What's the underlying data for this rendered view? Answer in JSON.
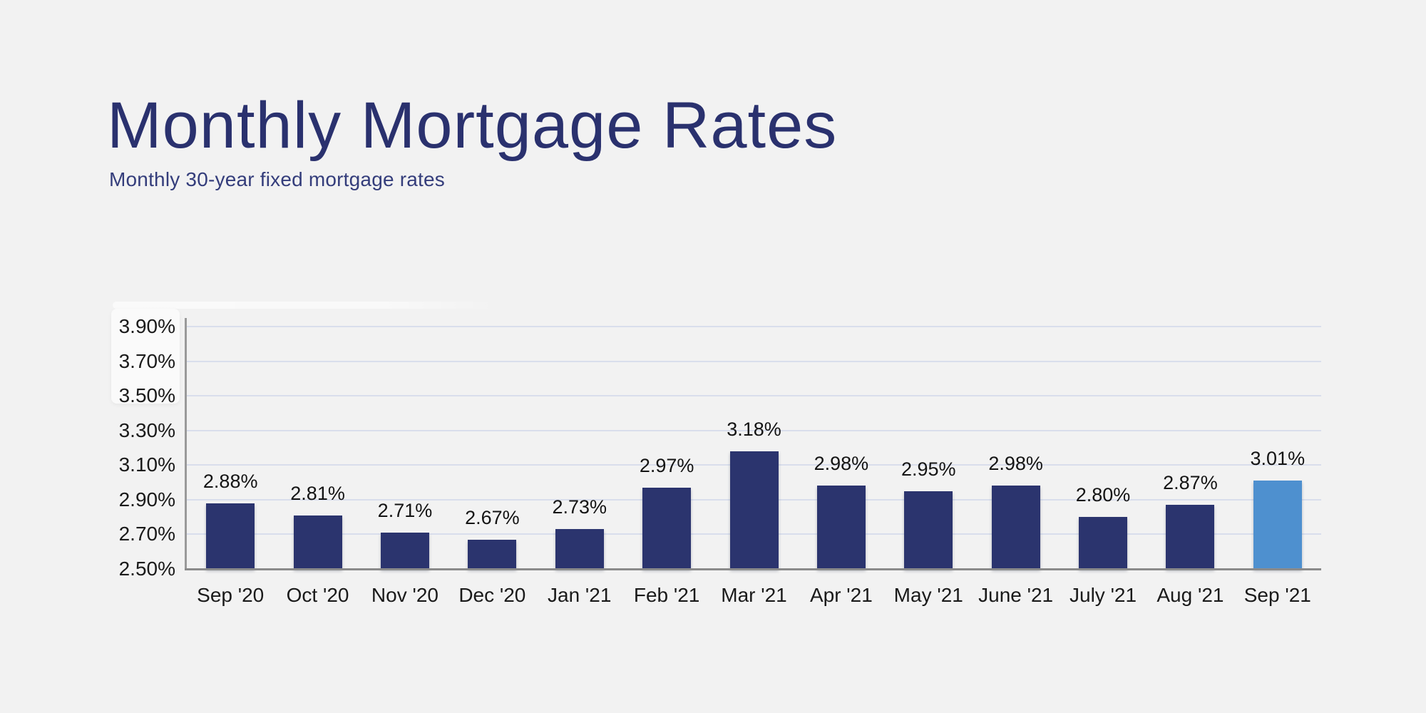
{
  "header": {
    "title": "Monthly Mortgage Rates",
    "subtitle": "Monthly 30-year fixed mortgage rates",
    "title_color": "#2A316E",
    "subtitle_color": "#343D7B"
  },
  "page": {
    "background_color": "#F2F2F2"
  },
  "chart_data": {
    "type": "bar",
    "title": "Monthly Mortgage Rates",
    "subtitle": "Monthly 30-year fixed mortgage rates",
    "categories": [
      "Sep '20",
      "Oct '20",
      "Nov '20",
      "Dec '20",
      "Jan '21",
      "Feb '21",
      "Mar '21",
      "Apr '21",
      "May '21",
      "June '21",
      "July '21",
      "Aug '21",
      "Sep '21"
    ],
    "values": [
      2.88,
      2.81,
      2.71,
      2.67,
      2.73,
      2.97,
      3.18,
      2.98,
      2.95,
      2.98,
      2.8,
      2.87,
      3.01
    ],
    "value_labels": [
      "2.88%",
      "2.81%",
      "2.71%",
      "2.67%",
      "2.73%",
      "2.97%",
      "3.18%",
      "2.98%",
      "2.95%",
      "2.98%",
      "2.80%",
      "2.87%",
      "3.01%"
    ],
    "y_tick_labels": [
      "3.90%",
      "3.70%",
      "3.50%",
      "3.30%",
      "3.10%",
      "2.90%",
      "2.70%",
      "2.50%"
    ],
    "ylim": [
      2.5,
      3.9
    ],
    "y_step": 0.2,
    "xlabel": "",
    "ylabel": "",
    "grid": true,
    "legend": false,
    "legend_position": "none",
    "bar_color": "#2B346E",
    "highlight_bar_color": "#4E90CF",
    "highlight_index": 12,
    "gridline_color": "#D9DEEC",
    "y_axis_line_color": "#9A9A9A",
    "x_axis_line_color": "#8B8B8B",
    "label_color": "#141414"
  }
}
